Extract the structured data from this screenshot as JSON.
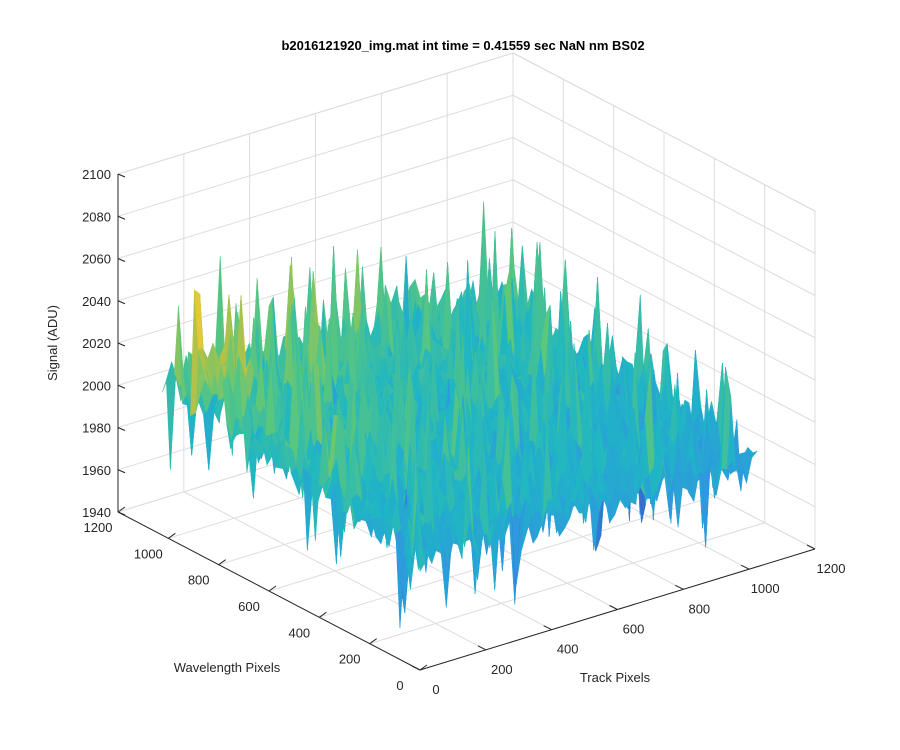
{
  "chart_data": {
    "type": "surface",
    "title": "b2016121920_img.mat int time = 0.41559 sec  NaN nm BS02",
    "xlabel": "Track Pixels",
    "ylabel": "Wavelength Pixels",
    "zlabel": "Signal (ADU)",
    "xlim": [
      0,
      1200
    ],
    "ylim": [
      0,
      1200
    ],
    "zlim": [
      1940,
      2100
    ],
    "x_ticks": [
      "0",
      "200",
      "400",
      "600",
      "800",
      "1000",
      "1200"
    ],
    "y_ticks": [
      "0",
      "200",
      "400",
      "600",
      "800",
      "1000",
      "1200"
    ],
    "z_ticks": [
      "1940",
      "1960",
      "1980",
      "2000",
      "2020",
      "2040",
      "2060",
      "2080",
      "2100"
    ],
    "data_extent": {
      "x": [
        0,
        1024
      ],
      "y": [
        0,
        1024
      ]
    },
    "signal_mean": 2000,
    "signal_range": [
      1955,
      2075
    ],
    "colormap": [
      "#3e26a8",
      "#2f97e0",
      "#1fb6c4",
      "#5dc77a",
      "#c8c03c",
      "#f9d028"
    ],
    "grid": true,
    "legend": "none"
  }
}
